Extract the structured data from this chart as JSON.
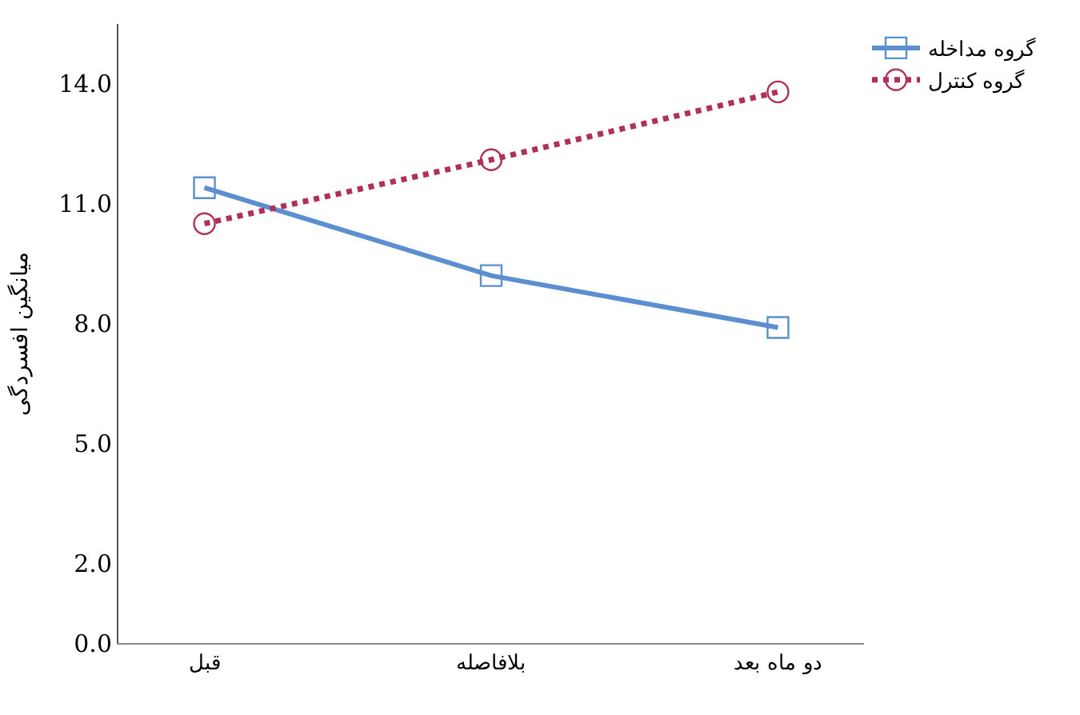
{
  "chart_data": {
    "type": "line",
    "ylabel": "میانگین افسردگی",
    "categories": [
      "قبل",
      "بلافاصله",
      "دو ماه بعد"
    ],
    "ylim": [
      0,
      15.5
    ],
    "yticks": [
      {
        "value": 0,
        "label": "0.0"
      },
      {
        "value": 2,
        "label": "2.0"
      },
      {
        "value": 5,
        "label": "5.0"
      },
      {
        "value": 8,
        "label": "8.0"
      },
      {
        "value": 11,
        "label": "11.0"
      },
      {
        "value": 14,
        "label": "14.0"
      }
    ],
    "legend": "top right",
    "series": [
      {
        "name": "گروه مداخله",
        "color": "#5b8fd0",
        "values": [
          11.4,
          9.2,
          7.9
        ],
        "marker": "square",
        "line_style": "solid"
      },
      {
        "name": "گروه کنترل",
        "color": "#b0305a",
        "values": [
          10.5,
          12.1,
          13.8
        ],
        "marker": "circle",
        "line_style": "dotted"
      }
    ]
  }
}
